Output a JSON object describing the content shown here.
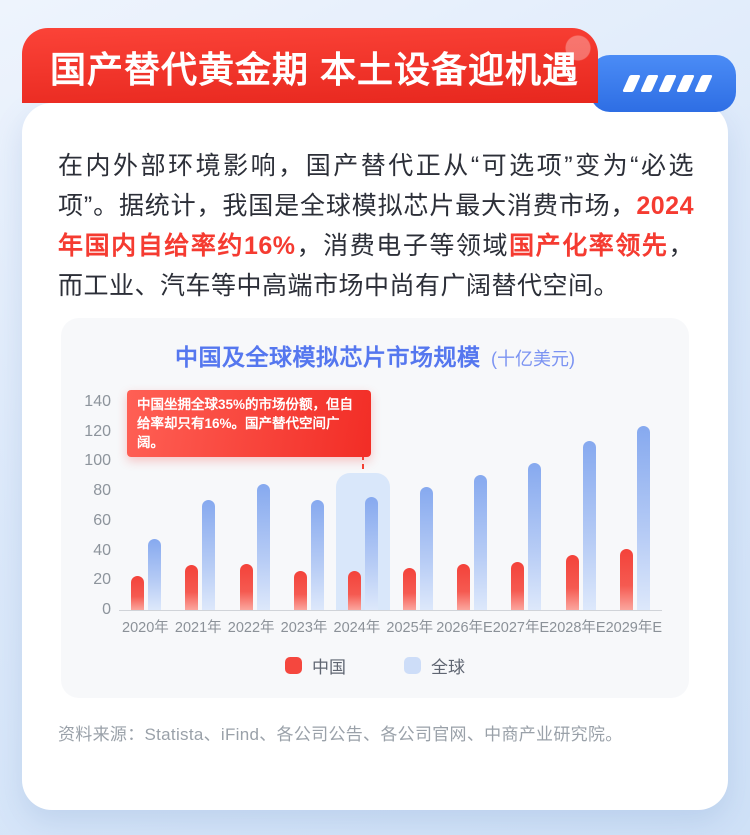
{
  "banner": {
    "title": "国产替代黄金期 本土设备迎机遇",
    "color_top": "#fb4338",
    "color_bottom": "#e7271e",
    "tag_color": "#3b7df0",
    "tag_slash_count": 5
  },
  "intro": {
    "emphasis_color": "#f53b31",
    "segments": [
      {
        "text": "在内外部环境影响，国产替代正从“可选项”变为“必选项”。据统计，我国是全球模拟芯片最大消费市场，",
        "emphasis": false
      },
      {
        "text": "2024年国内自给率约16%",
        "emphasis": true
      },
      {
        "text": "，消费电子等领域",
        "emphasis": false
      },
      {
        "text": "国产化率领先",
        "emphasis": true
      },
      {
        "text": "，而工业、汽车等中高端市场中尚有广阔替代空间。",
        "emphasis": false
      }
    ]
  },
  "chart_data": {
    "type": "bar",
    "title": "中国及全球模拟芯片市场规模",
    "unit_label": "(十亿美元)",
    "categories": [
      "2020年",
      "2021年",
      "2022年",
      "2023年",
      "2024年",
      "2025年",
      "2026年E",
      "2027年E",
      "2028年E",
      "2029年E"
    ],
    "series": [
      {
        "name": "中国",
        "values": [
          23,
          30,
          31,
          26,
          26,
          28,
          31,
          32,
          37,
          41
        ],
        "color_top": "#f4423a",
        "color_mid": "#f55a51",
        "color_bottom": "#fba69e",
        "legend_color": "#f5473e"
      },
      {
        "name": "全球",
        "values": [
          48,
          74,
          85,
          74,
          76,
          83,
          91,
          99,
          114,
          124
        ],
        "color_top": "#86a9ef",
        "color_mid": "#b7ccf5",
        "color_bottom": "#dde8fb",
        "legend_color": "#cdddf8"
      }
    ],
    "ylim": [
      0,
      140
    ],
    "yticks": [
      0,
      20,
      40,
      60,
      80,
      100,
      120,
      140
    ],
    "grid": false,
    "legend_position": "bottom",
    "highlight": {
      "category": "2024年",
      "box_top_value": 92
    },
    "annotation": {
      "text": "中国坐拥全球35%的市场份额，但自给率却只有16%。国产替代空间广阔。",
      "color": "#f32f28"
    }
  },
  "source": {
    "text": "资料来源：Statista、iFind、各公司公告、各公司官网、中商产业研究院。"
  }
}
